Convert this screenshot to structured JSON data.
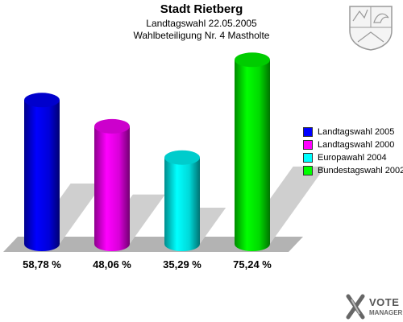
{
  "chart_data": {
    "type": "bar",
    "title": "Stadt Rietberg",
    "subtitle_1": "Landtagswahl 22.05.2005",
    "subtitle_2": "Wahlbeteiligung Nr. 4 Mastholte",
    "categories": [
      "Landtagswahl 2005",
      "Landtagswahl 2000",
      "Europawahl 2004",
      "Bundestagswahl 2002"
    ],
    "values": [
      58.78,
      48.06,
      35.29,
      75.24
    ],
    "value_labels": [
      "58,78 %",
      "48,06 %",
      "35,29 %",
      "75,24 %"
    ],
    "colors": [
      "#0000ff",
      "#ff00ff",
      "#00ffff",
      "#00ff00"
    ],
    "legend_placement": "right",
    "grid": false
  },
  "logo": {
    "line1": "VOTE",
    "line2": "MANAGER",
    "icon": "vote-manager-x-icon"
  },
  "seal": {
    "icon": "nrw-coat-of-arms-icon"
  }
}
